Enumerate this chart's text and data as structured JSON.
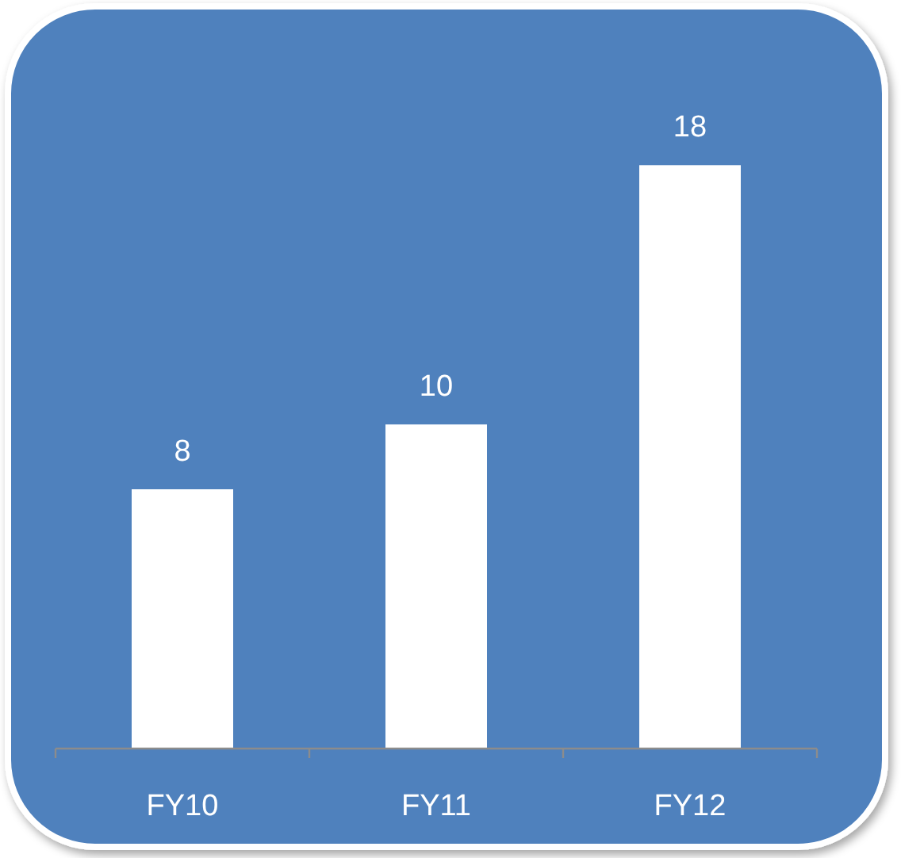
{
  "chart_data": {
    "type": "bar",
    "categories": [
      "FY10",
      "FY11",
      "FY12"
    ],
    "values": [
      8,
      10,
      18
    ],
    "color": "#ffffff",
    "data_labels": true
  }
}
